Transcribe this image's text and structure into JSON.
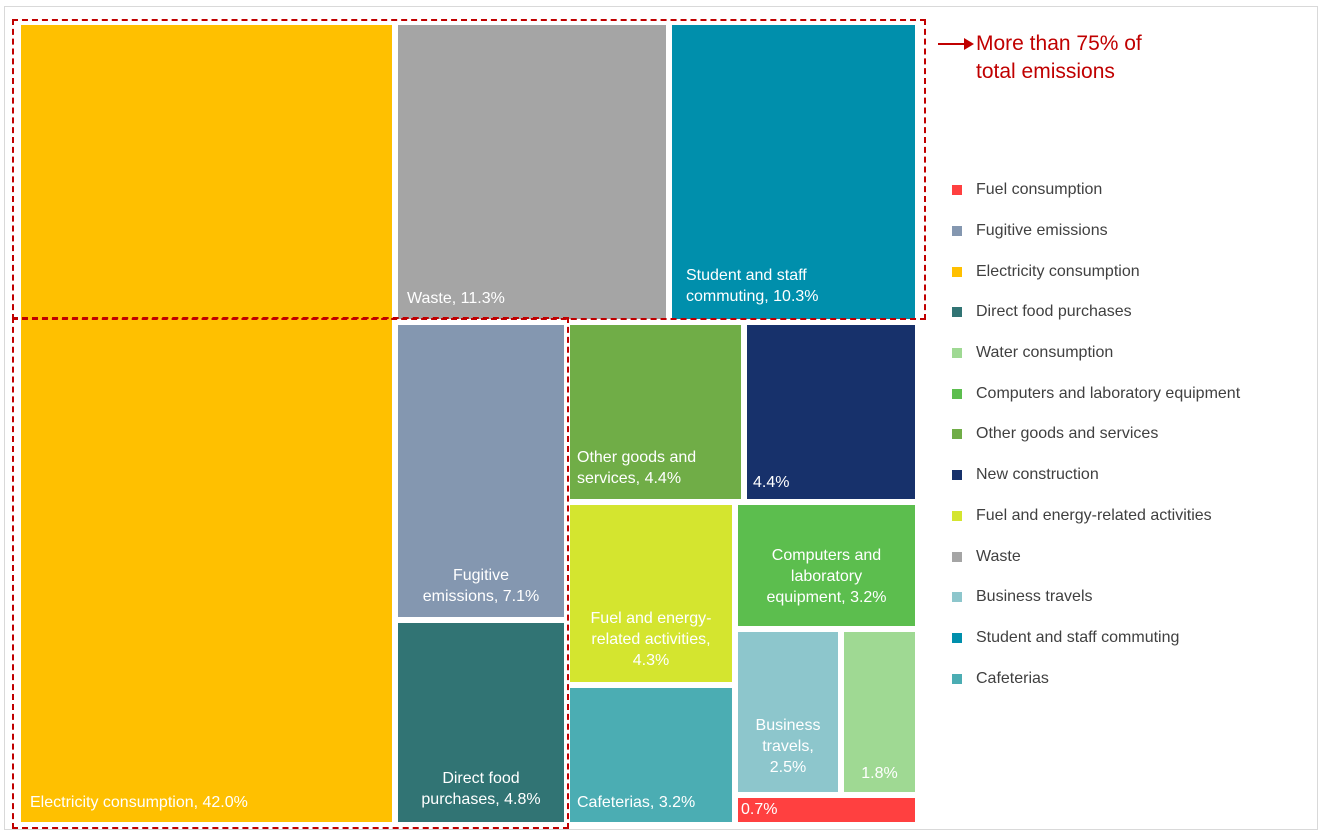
{
  "chart_data": {
    "type": "treemap",
    "title": "",
    "items": [
      {
        "key": "electricity",
        "name": "Electricity consumption",
        "value": 42.0,
        "color": "#ffc000",
        "label": "Electricity consumption, 42.0%"
      },
      {
        "key": "waste",
        "name": "Waste",
        "value": 11.3,
        "color": "#a5a5a5",
        "label": "Waste, 11.3%"
      },
      {
        "key": "commuting",
        "name": "Student and staff commuting",
        "value": 10.3,
        "color": "#008fac",
        "label": "Student and staff\ncommuting, 10.3%"
      },
      {
        "key": "fugitive",
        "name": "Fugitive emissions",
        "value": 7.1,
        "color": "#8497b0",
        "label": "Fugitive\nemissions, 7.1%"
      },
      {
        "key": "food",
        "name": "Direct food purchases",
        "value": 4.8,
        "color": "#317474",
        "label": "Direct food\npurchases, 4.8%"
      },
      {
        "key": "goods",
        "name": "Other goods and services",
        "value": 4.4,
        "color": "#70ad47",
        "label": "Other goods and\nservices, 4.4%"
      },
      {
        "key": "construction",
        "name": "New construction",
        "value": 4.4,
        "color": "#17316b",
        "label": "4.4%"
      },
      {
        "key": "fuel_energy",
        "name": "Fuel and energy-related activities",
        "value": 4.3,
        "color": "#d4e52f",
        "label": "Fuel and energy-\nrelated activities,\n4.3%"
      },
      {
        "key": "computers",
        "name": "Computers and laboratory equipment",
        "value": 3.2,
        "color": "#5cbe4e",
        "label": "Computers and\nlaboratory\nequipment, 3.2%"
      },
      {
        "key": "cafeterias",
        "name": "Cafeterias",
        "value": 3.2,
        "color": "#4badb3",
        "label": "Cafeterias, 3.2%"
      },
      {
        "key": "business",
        "name": "Business travels",
        "value": 2.5,
        "color": "#8dc6cc",
        "label": "Business\ntravels,\n2.5%"
      },
      {
        "key": "water",
        "name": "Water consumption",
        "value": 1.8,
        "color": "#9fd993",
        "label": "1.8%"
      },
      {
        "key": "fuel",
        "name": "Fuel consumption",
        "value": 0.7,
        "color": "#ff4040",
        "label": "0.7%"
      }
    ],
    "legend": [
      {
        "label": "Fuel consumption",
        "color": "#ff4040"
      },
      {
        "label": "Fugitive emissions",
        "color": "#8497b0"
      },
      {
        "label": "Electricity consumption",
        "color": "#ffc000"
      },
      {
        "label": "Direct food purchases",
        "color": "#317474"
      },
      {
        "label": "Water consumption",
        "color": "#9fd993"
      },
      {
        "label": "Computers and laboratory equipment",
        "color": "#5cbe4e"
      },
      {
        "label": "Other goods and services",
        "color": "#70ad47"
      },
      {
        "label": "New construction",
        "color": "#17316b"
      },
      {
        "label": "Fuel and energy-related activities",
        "color": "#d4e52f"
      },
      {
        "label": "Waste",
        "color": "#a5a5a5"
      },
      {
        "label": "Business travels",
        "color": "#8dc6cc"
      },
      {
        "label": "Student and staff commuting",
        "color": "#008fac"
      },
      {
        "label": "Cafeterias",
        "color": "#4badb3"
      }
    ],
    "legend_position": "right",
    "annotation": {
      "text": "More than 75% of\ntotal emissions",
      "color": "#c00000",
      "arrow_icon": "right-arrow-icon"
    }
  }
}
